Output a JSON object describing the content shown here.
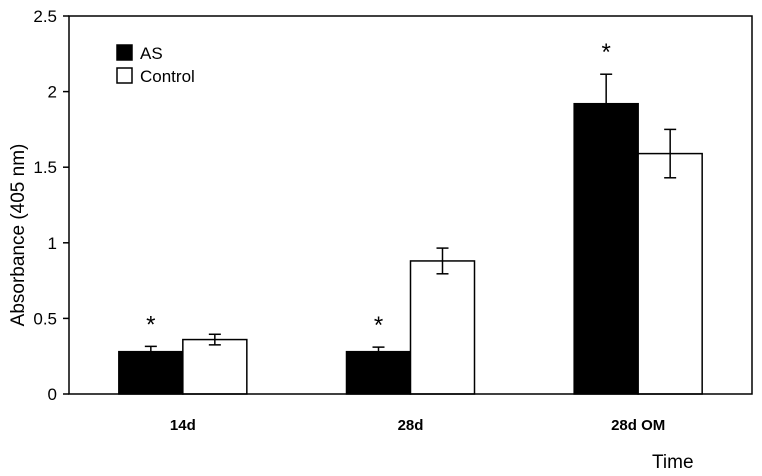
{
  "chart_data": {
    "type": "bar",
    "categories": [
      "14d",
      "28d",
      "28d OM"
    ],
    "series": [
      {
        "name": "AS",
        "values": [
          0.28,
          0.28,
          1.92
        ],
        "errors": [
          0.035,
          0.03,
          0.195
        ],
        "color": "#000000"
      },
      {
        "name": "Control",
        "values": [
          0.36,
          0.88,
          1.59
        ],
        "errors": [
          0.035,
          0.085,
          0.16
        ],
        "color": "#ffffff"
      }
    ],
    "significance": [
      {
        "category": "14d",
        "series": "AS",
        "label": "*"
      },
      {
        "category": "28d",
        "series": "AS",
        "label": "*"
      },
      {
        "category": "28d OM",
        "series": "AS",
        "label": "*"
      }
    ],
    "ylabel": "Absorbance (405 nm)",
    "xlabel": "Time",
    "ylim": [
      0,
      2.5
    ],
    "yticks": [
      0,
      0.5,
      1,
      1.5,
      2,
      2.5
    ],
    "ytick_labels": [
      "0",
      "0.5",
      "1",
      "1.5",
      "2",
      "2.5"
    ],
    "grid": false,
    "legend_position": "top-left"
  }
}
